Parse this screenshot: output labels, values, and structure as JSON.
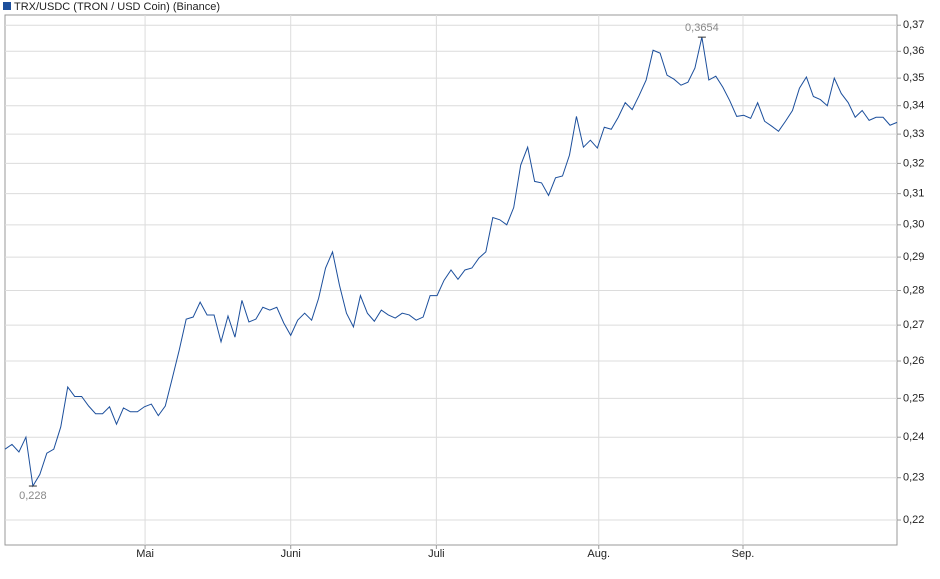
{
  "chart_data": {
    "type": "line",
    "log_scale": true,
    "grid": true,
    "series": [
      {
        "name": "TRX/USDC (TRON / USD Coin) (Binance)",
        "color": "#1c4f9c",
        "values": [
          0.237,
          0.2382,
          0.2363,
          0.24,
          0.228,
          0.2308,
          0.236,
          0.237,
          0.2426,
          0.253,
          0.2505,
          0.2505,
          0.248,
          0.246,
          0.246,
          0.2478,
          0.2433,
          0.2475,
          0.2465,
          0.2465,
          0.2478,
          0.2485,
          0.2455,
          0.248,
          0.2553,
          0.263,
          0.2717,
          0.2723,
          0.2766,
          0.2729,
          0.2729,
          0.2653,
          0.2726,
          0.2666,
          0.2771,
          0.2709,
          0.2717,
          0.2751,
          0.2743,
          0.2751,
          0.2706,
          0.2671,
          0.2714,
          0.2734,
          0.2714,
          0.2777,
          0.2867,
          0.2916,
          0.2815,
          0.2734,
          0.2695,
          0.2785,
          0.2734,
          0.2711,
          0.2743,
          0.2729,
          0.272,
          0.2734,
          0.2729,
          0.2714,
          0.2723,
          0.2785,
          0.2785,
          0.283,
          0.2861,
          0.2833,
          0.2861,
          0.2867,
          0.2897,
          0.2916,
          0.3023,
          0.3016,
          0.3,
          0.3055,
          0.3194,
          0.3255,
          0.314,
          0.3135,
          0.3094,
          0.3152,
          0.3158,
          0.3228,
          0.3362,
          0.3255,
          0.3279,
          0.3252,
          0.3324,
          0.3317,
          0.3359,
          0.3411,
          0.3386,
          0.3437,
          0.3493,
          0.3604,
          0.3593,
          0.3511,
          0.3496,
          0.3474,
          0.3485,
          0.3537,
          0.3654,
          0.3493,
          0.3507,
          0.3467,
          0.3418,
          0.3362,
          0.3366,
          0.3355,
          0.3411,
          0.3345,
          0.3328,
          0.331,
          0.3345,
          0.3383,
          0.3463,
          0.3504,
          0.3433,
          0.3422,
          0.34,
          0.35,
          0.3444,
          0.3411,
          0.3359,
          0.3383,
          0.3348,
          0.3359,
          0.3359,
          0.3331,
          0.3341
        ]
      }
    ],
    "x": [
      0,
      1,
      2,
      3,
      4,
      5,
      6,
      7,
      8,
      9,
      10,
      11,
      12,
      13,
      14,
      15,
      16,
      17,
      18,
      19,
      20,
      21,
      22,
      23,
      24,
      25,
      26,
      27,
      28,
      29,
      30,
      31,
      32,
      33,
      34,
      35,
      36,
      37,
      38,
      39,
      40,
      41,
      42,
      43,
      44,
      45,
      46,
      47,
      48,
      49,
      50,
      51,
      52,
      53,
      54,
      55,
      56,
      57,
      58,
      59,
      60,
      61,
      62,
      63,
      64,
      65,
      66,
      67,
      68,
      69,
      70,
      71,
      72,
      73,
      74,
      75,
      76,
      77,
      78,
      79,
      80,
      81,
      82,
      83,
      84,
      85,
      86,
      87,
      88,
      89,
      90,
      91,
      92,
      93,
      94,
      95,
      96,
      97,
      98,
      99,
      100,
      101,
      102,
      103,
      104,
      105,
      106,
      107,
      108,
      109,
      110,
      111,
      112,
      113,
      114,
      115,
      116,
      117,
      118,
      119,
      120,
      121,
      122,
      123,
      124,
      125,
      126,
      127,
      128
    ],
    "xlim": [
      0,
      128
    ],
    "xticks": [
      {
        "value": 20.1,
        "label": "Mai"
      },
      {
        "value": 41,
        "label": "Juni"
      },
      {
        "value": 61.9,
        "label": "Juli"
      },
      {
        "value": 85.2,
        "label": "Aug."
      },
      {
        "value": 105.9,
        "label": "Sep."
      }
    ],
    "ylim": [
      0.2143,
      0.374
    ],
    "yticks": [
      {
        "value": 0.22,
        "label": "0,22"
      },
      {
        "value": 0.23,
        "label": "0,23"
      },
      {
        "value": 0.24,
        "label": "0,24"
      },
      {
        "value": 0.25,
        "label": "0,25"
      },
      {
        "value": 0.26,
        "label": "0,26"
      },
      {
        "value": 0.27,
        "label": "0,27"
      },
      {
        "value": 0.28,
        "label": "0,28"
      },
      {
        "value": 0.29,
        "label": "0,29"
      },
      {
        "value": 0.3,
        "label": "0,30"
      },
      {
        "value": 0.31,
        "label": "0,31"
      },
      {
        "value": 0.32,
        "label": "0,32"
      },
      {
        "value": 0.33,
        "label": "0,33"
      },
      {
        "value": 0.34,
        "label": "0,34"
      },
      {
        "value": 0.35,
        "label": "0,35"
      },
      {
        "value": 0.36,
        "label": "0,36"
      },
      {
        "value": 0.37,
        "label": "0,37"
      }
    ],
    "annotations": [
      {
        "x": 4,
        "value": 0.228,
        "label": "0,228",
        "position": "below"
      },
      {
        "x": 100,
        "value": 0.3654,
        "label": "0,3654",
        "position": "above"
      }
    ]
  }
}
